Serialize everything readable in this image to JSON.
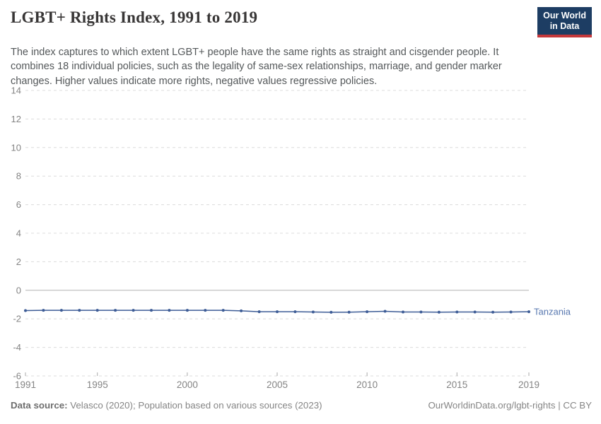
{
  "logo": {
    "line1": "Our World",
    "line2": "in Data"
  },
  "header": {
    "title": "LGBT+ Rights Index, 1991 to 2019",
    "subtitle": "The index captures to which extent LGBT+ people have the same rights as straight and cisgender people. It combines 18 individual policies, such as the legality of same-sex relationships, marriage, and gender marker changes. Higher values indicate more rights, negative values regressive policies."
  },
  "footer": {
    "source_label": "Data source:",
    "source_text": " Velasco (2020); Population based on various sources (2023)",
    "right_text": "OurWorldinData.org/lgbt-rights | CC BY"
  },
  "chart_data": {
    "type": "line",
    "title": "LGBT+ Rights Index, 1991 to 2019",
    "xlabel": "",
    "ylabel": "",
    "x": [
      1991,
      1992,
      1993,
      1994,
      1995,
      1996,
      1997,
      1998,
      1999,
      2000,
      2001,
      2002,
      2003,
      2004,
      2005,
      2006,
      2007,
      2008,
      2009,
      2010,
      2011,
      2012,
      2013,
      2014,
      2015,
      2016,
      2017,
      2018,
      2019
    ],
    "series": [
      {
        "name": "Tanzania",
        "values": [
          -1.42,
          -1.4,
          -1.4,
          -1.4,
          -1.4,
          -1.4,
          -1.4,
          -1.4,
          -1.4,
          -1.4,
          -1.4,
          -1.4,
          -1.44,
          -1.5,
          -1.5,
          -1.5,
          -1.52,
          -1.54,
          -1.53,
          -1.5,
          -1.47,
          -1.52,
          -1.52,
          -1.53,
          -1.52,
          -1.52,
          -1.53,
          -1.52,
          -1.5
        ]
      }
    ],
    "xlim": [
      1991,
      2019
    ],
    "ylim": [
      -6,
      14
    ],
    "yticks": [
      14,
      12,
      10,
      8,
      6,
      4,
      2,
      0,
      -2,
      -4,
      -6
    ],
    "xticks": [
      1991,
      1995,
      2000,
      2005,
      2010,
      2015,
      2019
    ],
    "grid": "horizontal-dashed",
    "zero_line": true,
    "legend_position": "line-end-label",
    "colors": {
      "line": "#3d5c96",
      "entity_label": "#5878b0",
      "gridline": "#dcdcdc",
      "zero_line": "#b3b3b3",
      "tick_label": "#848484",
      "axis_tick": "#a9a9a9"
    }
  }
}
